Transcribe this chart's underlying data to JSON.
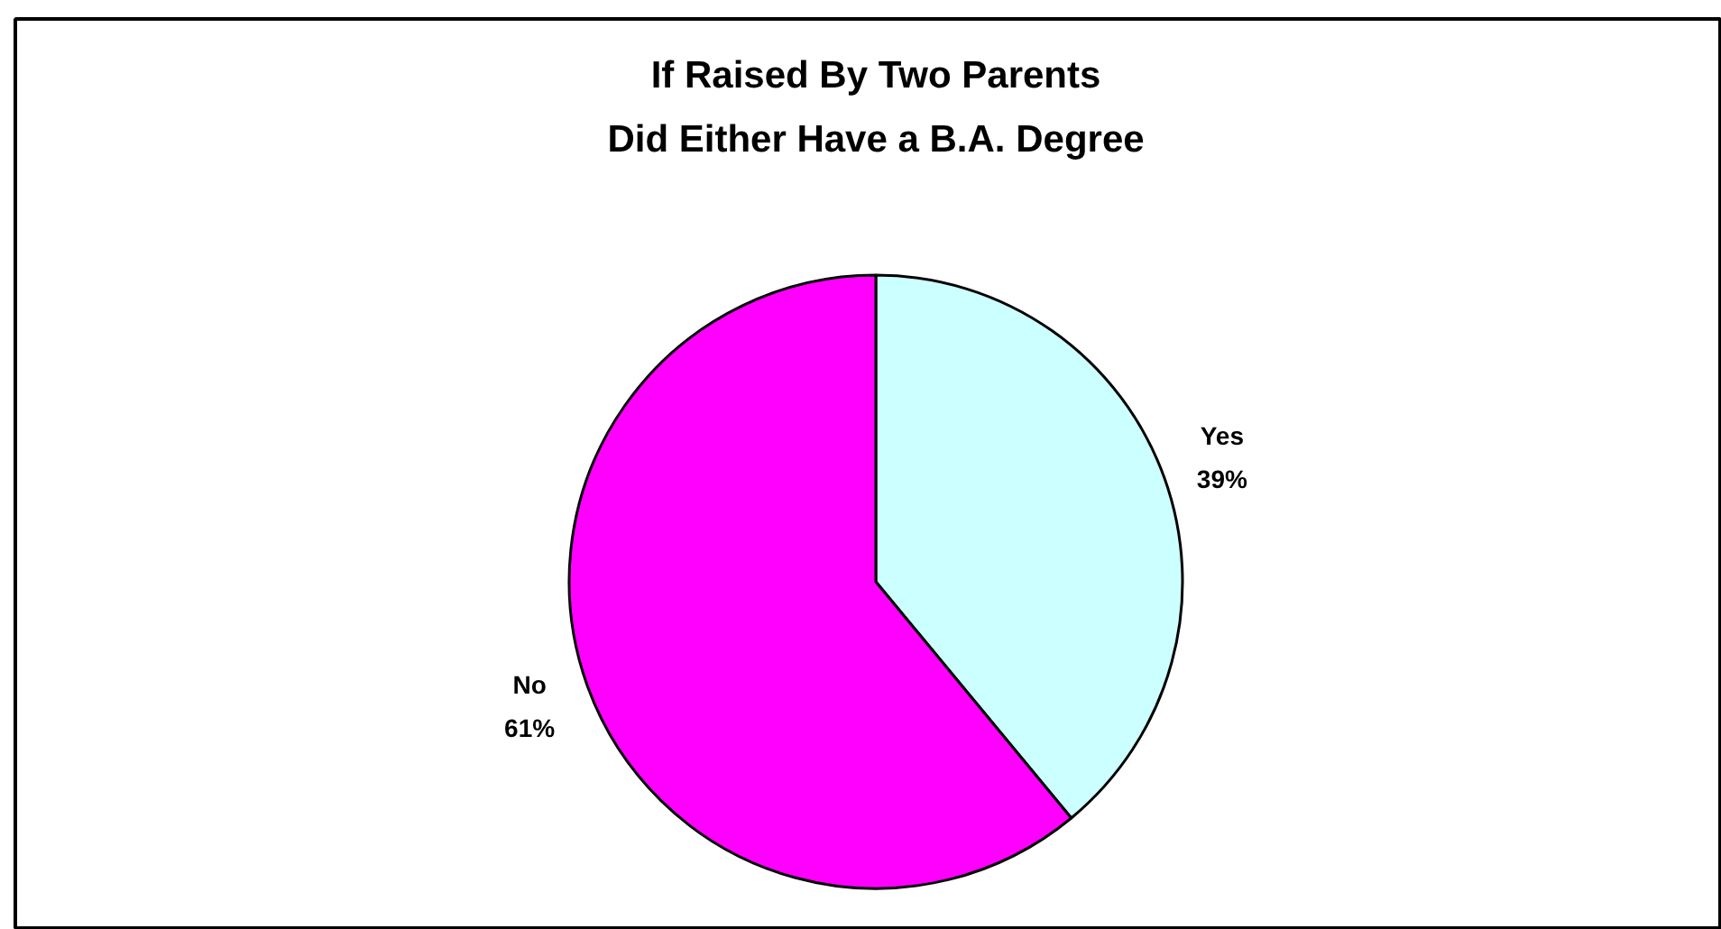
{
  "chart_data": {
    "type": "pie",
    "title": "If Raised By Two Parents\nDid Either Have a B.A. Degree",
    "categories": [
      "Yes",
      "No"
    ],
    "values": [
      39,
      61
    ],
    "colors": [
      "#ccffff",
      "#ff00ff"
    ],
    "value_labels": [
      "39%",
      "61%"
    ]
  }
}
